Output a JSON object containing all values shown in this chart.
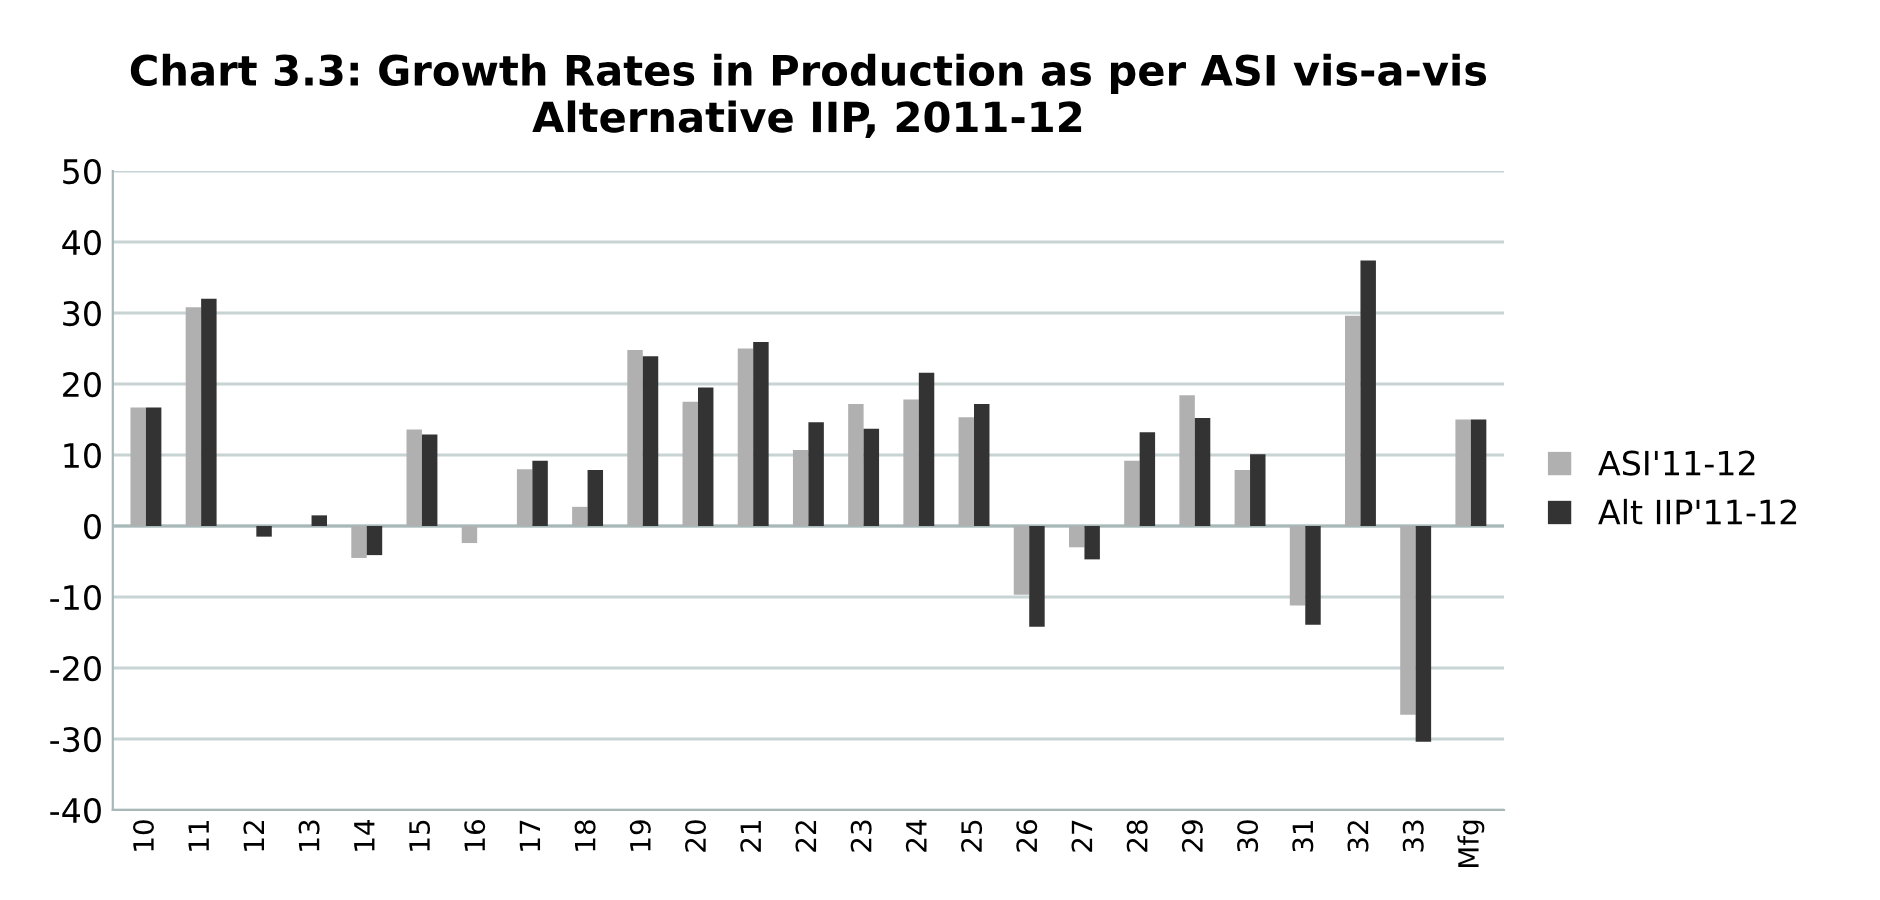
{
  "chart_data": {
    "type": "bar",
    "title": "Chart 3.3: Growth Rates in Production as per ASI vis-a-vis\nAlternative IIP, 2011-12",
    "categories": [
      "10",
      "11",
      "12",
      "13",
      "14",
      "15",
      "16",
      "17",
      "18",
      "19",
      "20",
      "21",
      "22",
      "23",
      "24",
      "25",
      "26",
      "27",
      "28",
      "29",
      "30",
      "31",
      "32",
      "33",
      "Mfg"
    ],
    "series": [
      {
        "name": "ASI'11-12",
        "color": "#b0b0b0",
        "values": [
          16.7,
          30.8,
          0,
          0,
          -4.5,
          13.6,
          -2.4,
          8.0,
          2.7,
          24.8,
          17.5,
          25.0,
          10.7,
          17.2,
          17.8,
          15.3,
          -9.7,
          -3.0,
          9.2,
          18.4,
          7.9,
          -11.2,
          29.6,
          -26.6,
          15.0
        ]
      },
      {
        "name": "Alt IIP'11-12",
        "color": "#333333",
        "values": [
          16.7,
          32.0,
          -1.5,
          1.5,
          -4.1,
          12.9,
          0,
          9.2,
          7.9,
          23.9,
          19.5,
          25.9,
          14.6,
          13.7,
          21.6,
          17.2,
          -14.2,
          -4.7,
          13.2,
          15.2,
          10.1,
          -13.9,
          37.4,
          -30.4,
          15.0
        ]
      }
    ],
    "ylim": [
      -40,
      50
    ],
    "yticks": [
      -40,
      -30,
      -20,
      -10,
      0,
      10,
      20,
      30,
      40,
      50
    ],
    "grid": "y",
    "legend": "right"
  }
}
